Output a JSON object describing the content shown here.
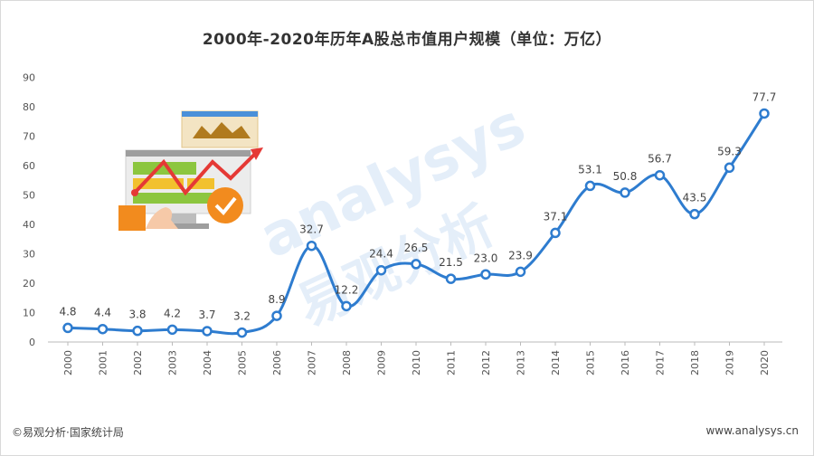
{
  "chart_data": {
    "type": "line",
    "title": "2000年-2020年历年A股总市值用户规模（单位：万亿）",
    "xlabel": "",
    "ylabel": "",
    "categories": [
      "2000",
      "2001",
      "2002",
      "2003",
      "2004",
      "2005",
      "2006",
      "2007",
      "2008",
      "2009",
      "2010",
      "2011",
      "2012",
      "2013",
      "2014",
      "2015",
      "2016",
      "2017",
      "2018",
      "2019",
      "2020"
    ],
    "values": [
      4.8,
      4.4,
      3.8,
      4.2,
      3.7,
      3.2,
      8.9,
      32.7,
      12.2,
      24.4,
      26.5,
      21.5,
      23.0,
      23.9,
      37.1,
      53.1,
      50.8,
      56.7,
      43.5,
      59.3,
      77.7
    ],
    "value_labels": [
      "4.8",
      "4.4",
      "3.8",
      "4.2",
      "3.7",
      "3.2",
      "8.9",
      "32.7",
      "12.2",
      "24.4",
      "26.5",
      "21.5",
      "23.0",
      "23.9",
      "37.1",
      "53.1",
      "50.8",
      "56.7",
      "43.5",
      "59.3",
      "77.7"
    ],
    "yticks": [
      "0",
      "10",
      "20",
      "30",
      "40",
      "50",
      "60",
      "70",
      "80",
      "90"
    ],
    "ylim": [
      0,
      90
    ],
    "grid": false,
    "line_color": "#2e7ccf",
    "marker_fill": "#ffffff"
  },
  "watermark": {
    "latin": "analysys",
    "cjk": "易观分析"
  },
  "footer": {
    "left": "©易观分析·国家统计局",
    "right": "www.analysys.cn"
  }
}
